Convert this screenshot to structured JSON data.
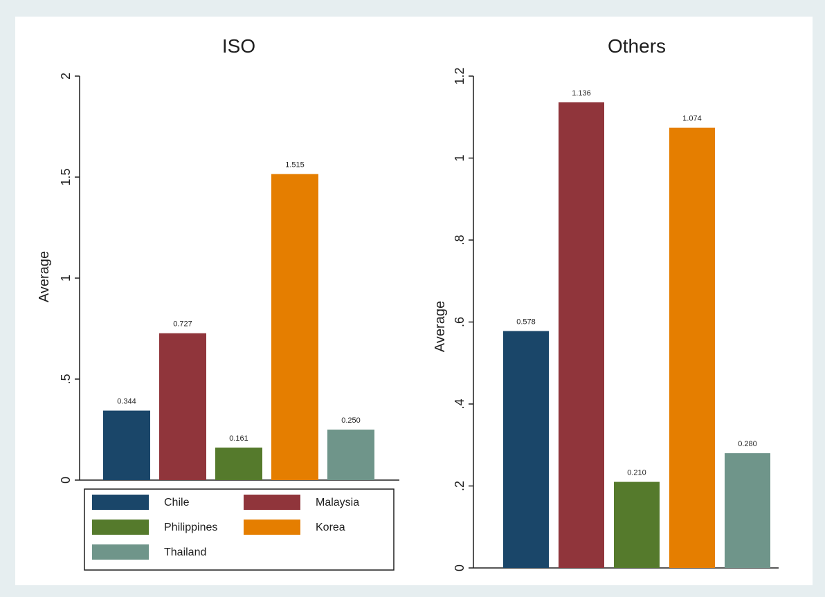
{
  "chart_data": [
    {
      "type": "bar",
      "title": "ISO",
      "ylabel": "Average",
      "ylim": [
        0,
        2
      ],
      "yticks": [
        {
          "v": 0,
          "label": "0"
        },
        {
          "v": 0.5,
          "label": ".5"
        },
        {
          "v": 1,
          "label": "1"
        },
        {
          "v": 1.5,
          "label": "1.5"
        },
        {
          "v": 2,
          "label": "2"
        }
      ],
      "series": [
        {
          "name": "Chile",
          "value": 0.344,
          "label": "0.344",
          "color": "#1a4669"
        },
        {
          "name": "Malaysia",
          "value": 0.727,
          "label": "0.727",
          "color": "#90353b"
        },
        {
          "name": "Philippines",
          "value": 0.161,
          "label": "0.161",
          "color": "#557a2c"
        },
        {
          "name": "Korea",
          "value": 1.515,
          "label": "1.515",
          "color": "#e57e00"
        },
        {
          "name": "Thailand",
          "value": 0.25,
          "label": "0.250",
          "color": "#6f958a"
        }
      ],
      "legend": {
        "placement": "bottom",
        "entries": [
          "Chile",
          "Malaysia",
          "Philippines",
          "Korea",
          "Thailand"
        ]
      }
    },
    {
      "type": "bar",
      "title": "Others",
      "ylabel": "Average",
      "ylim": [
        0,
        1.2
      ],
      "yticks": [
        {
          "v": 0,
          "label": "0"
        },
        {
          "v": 0.2,
          "label": ".2"
        },
        {
          "v": 0.4,
          "label": ".4"
        },
        {
          "v": 0.6,
          "label": ".6"
        },
        {
          "v": 0.8,
          "label": ".8"
        },
        {
          "v": 1,
          "label": "1"
        },
        {
          "v": 1.2,
          "label": "1.2"
        }
      ],
      "series": [
        {
          "name": "Chile",
          "value": 0.578,
          "label": "0.578",
          "color": "#1a4669"
        },
        {
          "name": "Malaysia",
          "value": 1.136,
          "label": "1.136",
          "color": "#90353b"
        },
        {
          "name": "Philippines",
          "value": 0.21,
          "label": "0.210",
          "color": "#557a2c"
        },
        {
          "name": "Korea",
          "value": 1.074,
          "label": "1.074",
          "color": "#e57e00"
        },
        {
          "name": "Thailand",
          "value": 0.28,
          "label": "0.280",
          "color": "#6f958a"
        }
      ]
    }
  ]
}
